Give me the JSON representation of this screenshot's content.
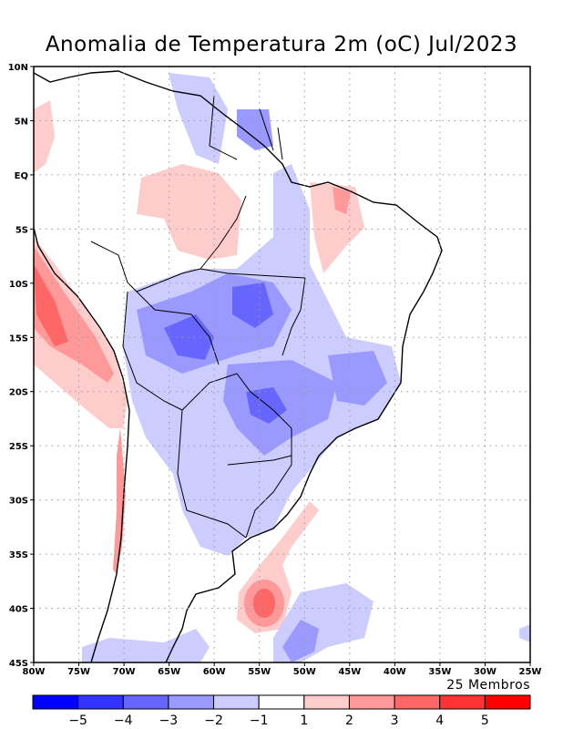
{
  "title": "Anomalia de Temperatura 2m (oC) Jul/2023",
  "members_label": "25 Membros",
  "lat_labels": [
    "10N",
    "5N",
    "EQ",
    "5S",
    "10S",
    "15S",
    "20S",
    "25S",
    "30S",
    "35S",
    "40S",
    "45S"
  ],
  "lon_labels": [
    "80W",
    "75W",
    "70W",
    "65W",
    "60W",
    "55W",
    "50W",
    "45W",
    "40W",
    "35W",
    "30W",
    "25W"
  ],
  "colorbar": {
    "colors": [
      "#0000ff",
      "#3333ff",
      "#6666ff",
      "#9999ff",
      "#ccccff",
      "#ffffff",
      "#ffcccc",
      "#ff9999",
      "#ff6666",
      "#ff3333",
      "#ff0000"
    ],
    "labels": [
      "-5",
      "-4",
      "-3",
      "-2",
      "-1",
      "1",
      "2",
      "3",
      "4",
      "5"
    ]
  }
}
